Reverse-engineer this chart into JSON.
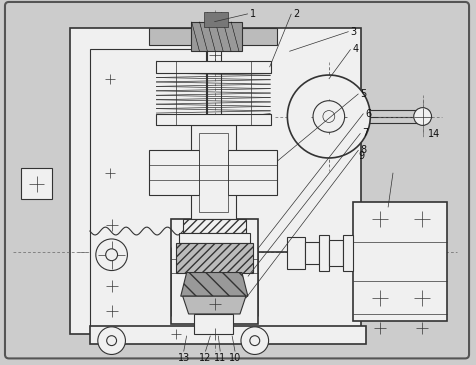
{
  "bg_color": "#cccccc",
  "border_color": "#555555",
  "line_color": "#333333",
  "dash_color": "#666666",
  "white": "#f0f0f0",
  "gray1": "#999999",
  "gray2": "#bbbbbb",
  "gray3": "#777777",
  "black": "#111111",
  "figsize": [
    4.76,
    3.65
  ],
  "dpi": 100
}
